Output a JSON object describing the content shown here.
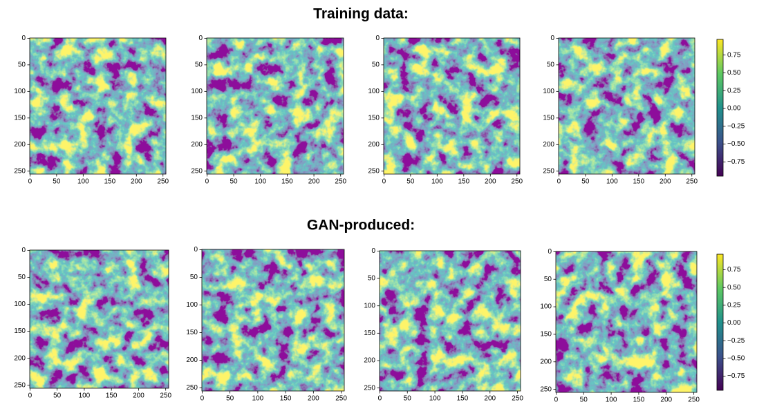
{
  "chart_data": [
    {
      "type": "heatmap",
      "title": "Training data:",
      "colormap": "viridis",
      "xlim": [
        -0.5,
        255.5
      ],
      "ylim": [
        255.5,
        -0.5
      ],
      "xticks": [
        0,
        50,
        100,
        150,
        200,
        250
      ],
      "yticks": [
        0,
        50,
        100,
        150,
        200,
        250
      ],
      "colorbar": {
        "clim": [
          -0.95,
          0.97
        ],
        "ticks": [
          {
            "value": -0.75,
            "label": "−0.75"
          },
          {
            "value": -0.5,
            "label": "−0.50"
          },
          {
            "value": -0.25,
            "label": "−0.25"
          },
          {
            "value": 0,
            "label": "0.00"
          },
          0.25,
          {
            "value": 0.5,
            "label": "0.50"
          },
          0.75
        ]
      }
    },
    {
      "type": "heatmap",
      "title": "GAN-produced:",
      "colormap": "viridis",
      "xlim": [
        -0.5,
        255.5
      ],
      "ylim": [
        255.5,
        -0.5
      ],
      "xticks": [
        0,
        50,
        100,
        150,
        200,
        250
      ],
      "yticks": [
        0,
        50,
        100,
        150,
        200,
        250
      ],
      "colorbar": {
        "clim": [
          -0.95,
          0.97
        ],
        "ticks": [
          {
            "value": -0.75,
            "label": "−0.75"
          },
          {
            "value": -0.5,
            "label": "−0.50"
          },
          {
            "value": -0.25,
            "label": "−0.25"
          },
          {
            "value": 0,
            "label": "0.00"
          },
          0.25,
          {
            "value": 0.5,
            "label": "0.50"
          },
          0.75
        ]
      }
    }
  ]
}
